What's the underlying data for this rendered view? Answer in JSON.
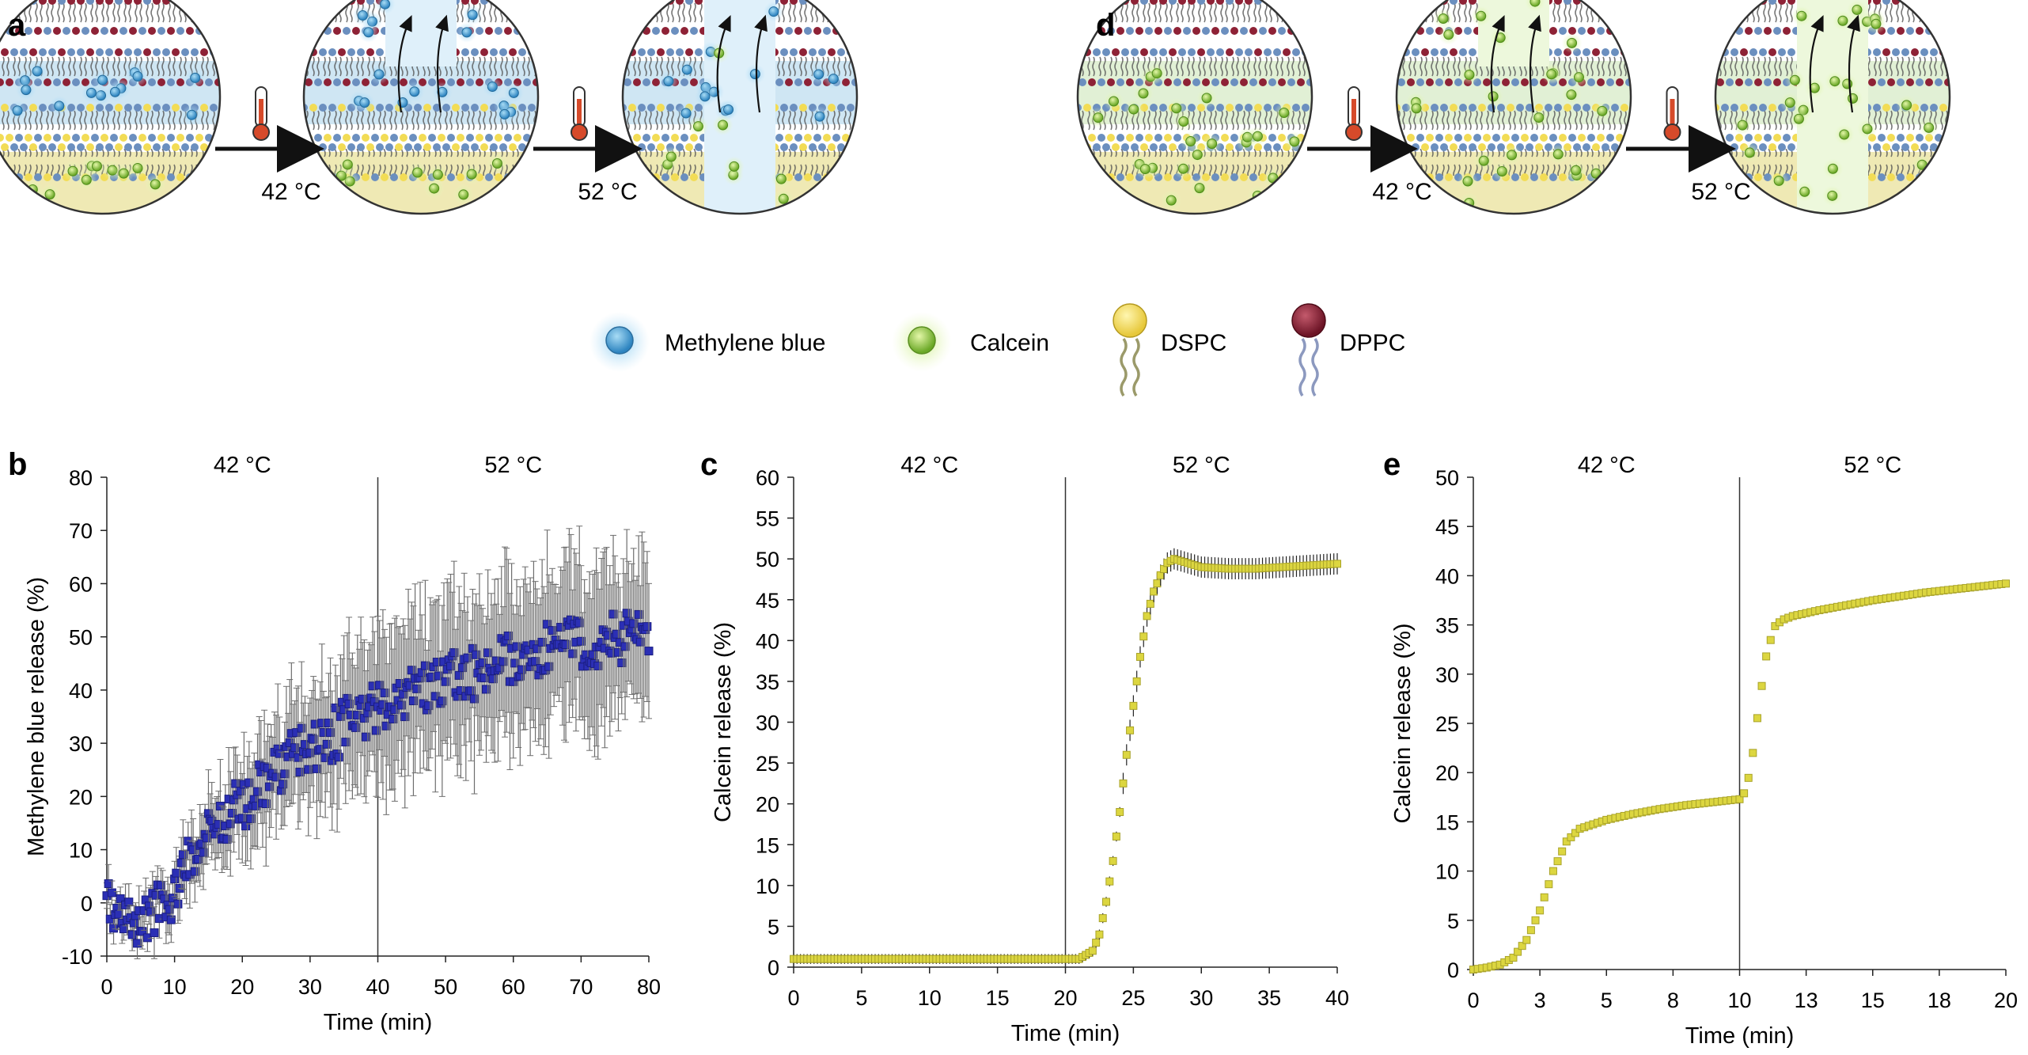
{
  "panel_labels": {
    "a": "a",
    "b": "b",
    "c": "c",
    "d": "d",
    "e": "e"
  },
  "schematic": {
    "a": {
      "step1_temp": "42 °C",
      "step2_temp": "52 °C"
    },
    "d": {
      "step1_temp": "42 °C",
      "step2_temp": "52 °C"
    }
  },
  "legend": {
    "methylene_blue": "Methylene blue",
    "calcein": "Calcein",
    "dspc": "DSPC",
    "dppc": "DPPC"
  },
  "colors": {
    "methylene_blue": "#3f9fd8",
    "calcein": "#8fce3c",
    "dspc": "#f2dc55",
    "dppc": "#8e2236",
    "marker_blue": "#2b2fb5",
    "marker_yellow": "#dcd640",
    "errorbar_gray": "#808080"
  },
  "chart_data": [
    {
      "id": "b",
      "type": "scatter",
      "xlabel": "Time (min)",
      "ylabel": "Methylene blue release (%)",
      "xlim": [
        0,
        80
      ],
      "ylim": [
        -10,
        80
      ],
      "xticks": [
        "0",
        "10",
        "20",
        "30",
        "40",
        "50",
        "60",
        "70",
        "80"
      ],
      "yticks": [
        "-10",
        "0",
        "10",
        "20",
        "30",
        "40",
        "50",
        "60",
        "70",
        "80"
      ],
      "divider_x": 40,
      "phase_labels": [
        "42 °C",
        "52 °C"
      ],
      "series": [
        {
          "name": "Methylene blue",
          "marker": "square",
          "color": "#2b2fb5",
          "points": [
            [
              0,
              0
            ],
            [
              2,
              -3
            ],
            [
              4,
              -5
            ],
            [
              6,
              -2
            ],
            [
              8,
              0
            ],
            [
              10,
              2
            ],
            [
              12,
              8
            ],
            [
              14,
              12
            ],
            [
              16,
              14
            ],
            [
              18,
              17
            ],
            [
              20,
              18
            ],
            [
              22,
              21
            ],
            [
              24,
              23
            ],
            [
              26,
              26
            ],
            [
              28,
              28
            ],
            [
              30,
              29
            ],
            [
              32,
              31
            ],
            [
              34,
              32
            ],
            [
              36,
              35
            ],
            [
              38,
              36
            ],
            [
              40,
              37
            ],
            [
              42,
              38
            ],
            [
              44,
              39
            ],
            [
              46,
              40
            ],
            [
              48,
              41
            ],
            [
              50,
              42
            ],
            [
              52,
              43
            ],
            [
              54,
              43
            ],
            [
              56,
              44
            ],
            [
              58,
              45
            ],
            [
              60,
              46
            ],
            [
              62,
              46
            ],
            [
              64,
              47
            ],
            [
              66,
              48
            ],
            [
              68,
              48
            ],
            [
              70,
              49
            ],
            [
              72,
              49
            ],
            [
              74,
              50
            ],
            [
              76,
              50
            ],
            [
              78,
              51
            ],
            [
              80,
              52
            ]
          ],
          "error": [
            [
              0,
              3
            ],
            [
              10,
              5
            ],
            [
              20,
              9
            ],
            [
              40,
              15
            ],
            [
              60,
              15
            ],
            [
              80,
              16
            ]
          ]
        }
      ]
    },
    {
      "id": "c",
      "type": "scatter",
      "xlabel": "Time (min)",
      "ylabel": "Calcein release (%)",
      "xlim": [
        0,
        40
      ],
      "ylim": [
        0,
        60
      ],
      "xticks": [
        "0",
        "5",
        "10",
        "15",
        "20",
        "25",
        "30",
        "35",
        "40"
      ],
      "yticks": [
        "0",
        "5",
        "10",
        "15",
        "20",
        "25",
        "30",
        "35",
        "40",
        "45",
        "50",
        "55",
        "60"
      ],
      "divider_x": 20,
      "phase_labels": [
        "42 °C",
        "52 °C"
      ],
      "series": [
        {
          "name": "Calcein",
          "marker": "square",
          "color": "#dcd640",
          "points": [
            [
              0,
              1
            ],
            [
              5,
              1
            ],
            [
              10,
              1
            ],
            [
              15,
              1
            ],
            [
              20,
              1
            ],
            [
              21,
              1
            ],
            [
              22,
              2
            ],
            [
              22.5,
              4
            ],
            [
              23,
              8
            ],
            [
              23.5,
              13
            ],
            [
              24,
              19
            ],
            [
              24.5,
              26
            ],
            [
              25,
              32
            ],
            [
              25.5,
              38
            ],
            [
              26,
              43
            ],
            [
              26.5,
              46
            ],
            [
              27,
              48
            ],
            [
              27.5,
              49.5
            ],
            [
              28,
              50
            ],
            [
              29,
              49.5
            ],
            [
              30,
              49
            ],
            [
              32,
              48.8
            ],
            [
              34,
              48.8
            ],
            [
              36,
              49
            ],
            [
              38,
              49.2
            ],
            [
              40,
              49.4
            ]
          ]
        }
      ]
    },
    {
      "id": "e",
      "type": "scatter",
      "xlabel": "Time (min)",
      "ylabel": "Calcein release (%)",
      "xlim": [
        0,
        20
      ],
      "ylim": [
        0,
        50
      ],
      "xticks": [
        "0",
        "3",
        "5",
        "8",
        "10",
        "13",
        "15",
        "18",
        "20"
      ],
      "yticks": [
        "0",
        "5",
        "10",
        "15",
        "20",
        "25",
        "30",
        "35",
        "40",
        "45",
        "50"
      ],
      "divider_x": 10,
      "phase_labels": [
        "42 °C",
        "52 °C"
      ],
      "series": [
        {
          "name": "Calcein",
          "marker": "square",
          "color": "#dcd640",
          "points": [
            [
              0,
              0
            ],
            [
              0.5,
              0.2
            ],
            [
              1,
              0.5
            ],
            [
              1.5,
              1.2
            ],
            [
              2,
              3
            ],
            [
              2.5,
              6
            ],
            [
              3,
              10
            ],
            [
              3.5,
              13
            ],
            [
              4,
              14.3
            ],
            [
              5,
              15.2
            ],
            [
              6,
              15.8
            ],
            [
              7,
              16.3
            ],
            [
              8,
              16.7
            ],
            [
              9,
              17
            ],
            [
              10,
              17.3
            ],
            [
              10.25,
              18.2
            ],
            [
              10.5,
              22
            ],
            [
              10.75,
              27.3
            ],
            [
              11,
              31.8
            ],
            [
              11.3,
              34.8
            ],
            [
              11.6,
              35.5
            ],
            [
              12,
              35.9
            ],
            [
              13,
              36.5
            ],
            [
              14,
              37
            ],
            [
              15,
              37.5
            ],
            [
              16,
              37.9
            ],
            [
              17,
              38.3
            ],
            [
              18,
              38.6
            ],
            [
              19,
              38.9
            ],
            [
              20,
              39.2
            ]
          ]
        }
      ]
    }
  ]
}
